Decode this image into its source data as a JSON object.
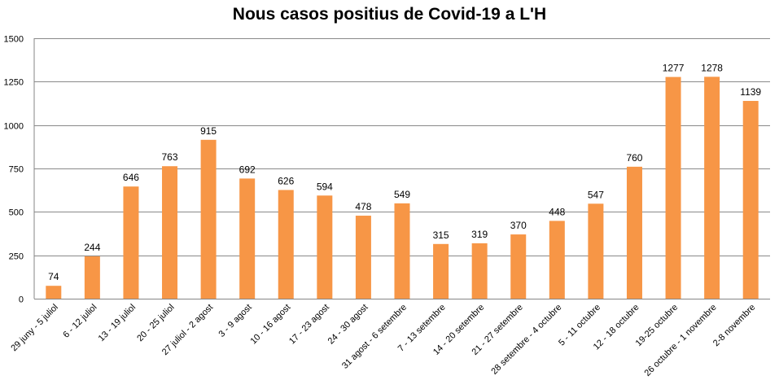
{
  "chart_data": {
    "type": "bar",
    "title": "Nous casos positius de Covid-19 a L'H",
    "xlabel": "",
    "ylabel": "",
    "ylim": [
      0,
      1500
    ],
    "yticks": [
      0,
      250,
      500,
      750,
      1000,
      1250,
      1500
    ],
    "grid": true,
    "legend": "none",
    "bar_color": "#F79646",
    "categories": [
      "29 juny - 5 juliol",
      "6 - 12 juliol",
      "13 - 19 juliol",
      "20 - 25 juliol",
      "27 juliol - 2 agost",
      "3 - 9 agost",
      "10 - 16 agost",
      "17 - 23 agost",
      "24 - 30 agost",
      "31 agost - 6 setembre",
      "7 - 13 setembre",
      "14 - 20 setembre",
      "21 - 27 setembre",
      "28 setembre - 4 octubre",
      "5 - 11 octubre",
      "12 - 18 octubre",
      "19-25 octubre",
      "26 octubre - 1 novembre",
      "2-8 novembre"
    ],
    "values": [
      74,
      244,
      646,
      763,
      915,
      692,
      626,
      594,
      478,
      549,
      315,
      319,
      370,
      448,
      547,
      760,
      1277,
      1278,
      1139
    ]
  }
}
